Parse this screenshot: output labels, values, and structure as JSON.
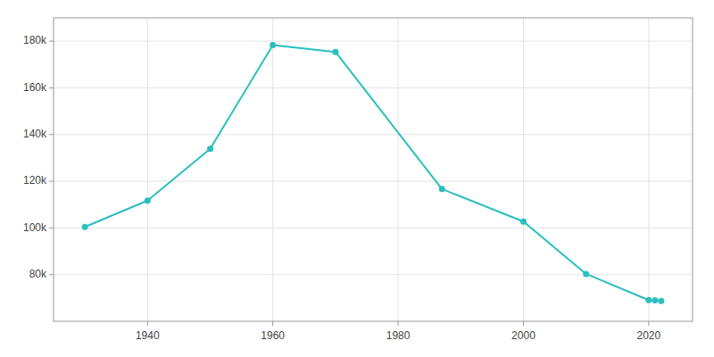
{
  "chart_data": {
    "type": "line",
    "x": [
      1930,
      1940,
      1950,
      1960,
      1970,
      1987,
      2000,
      2010,
      2020,
      2021,
      2022
    ],
    "values": [
      100426,
      111719,
      133911,
      178320,
      175415,
      116646,
      102746,
      80294,
      69093,
      68995,
      68718
    ],
    "color": "#2abfbf",
    "marker": "circle",
    "xlim": [
      1925,
      2027
    ],
    "ylim": [
      60000,
      190000
    ],
    "xticks": [
      1940,
      1960,
      1980,
      2000,
      2020
    ],
    "yticks": [
      {
        "value": 80000,
        "label": "80k"
      },
      {
        "value": 100000,
        "label": "100k"
      },
      {
        "value": 120000,
        "label": "120k"
      },
      {
        "value": 140000,
        "label": "140k"
      },
      {
        "value": 160000,
        "label": "160k"
      },
      {
        "value": 180000,
        "label": "180k"
      }
    ],
    "grid": true
  }
}
